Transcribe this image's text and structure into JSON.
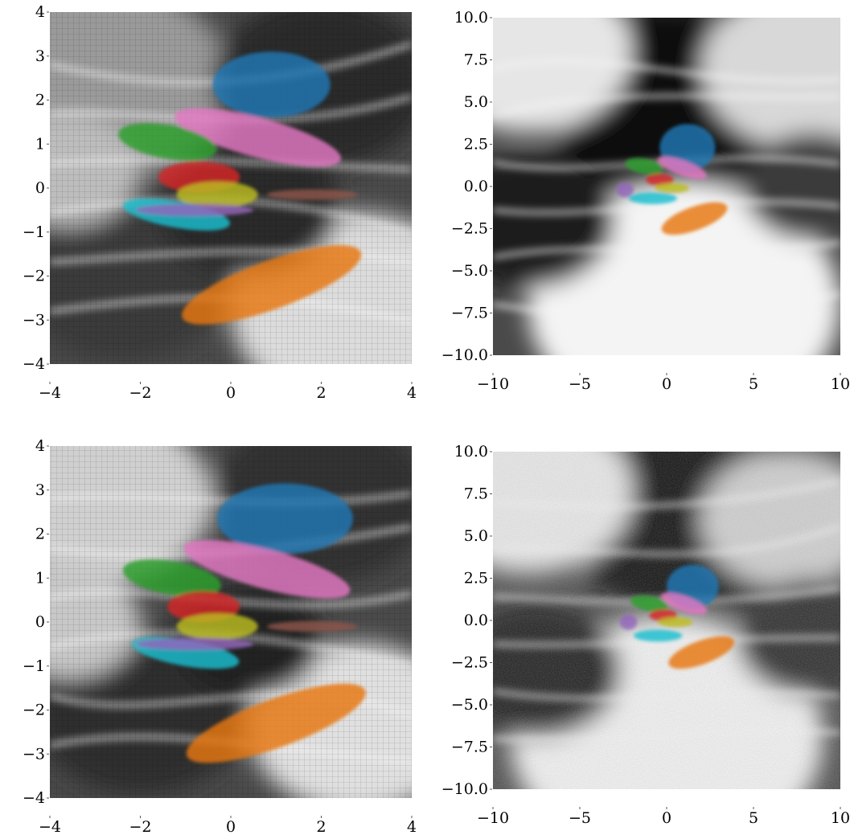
{
  "figure": {
    "layout": "2x2 grid of heatmap panels with overlaid colored point clusters"
  },
  "palette": {
    "blue": "#1f77b4",
    "orange": "#e8760f",
    "green": "#2ca02c",
    "red": "#d62728",
    "purple": "#9467bd",
    "pink": "#e377c2",
    "olive": "#bcbd22",
    "cyan": "#17becf",
    "brown": "#8c564b",
    "background_dark": "#1a1a1a",
    "background_light": "#f2f2f2"
  },
  "chart_data": [
    {
      "type": "heatmap",
      "panel": "top-left",
      "background": "grayscale density map, coarse grid",
      "grid": true,
      "xlim": [
        -4,
        4
      ],
      "ylim": [
        -4,
        4
      ],
      "xticks": [
        "−4",
        "−2",
        "0",
        "2",
        "4"
      ],
      "yticks": [
        "−4",
        "−3",
        "−2",
        "−1",
        "0",
        "1",
        "2",
        "3",
        "4"
      ],
      "xtick_values": [
        -4,
        -2,
        0,
        2,
        4
      ],
      "ytick_values": [
        -4,
        -3,
        -2,
        -1,
        0,
        1,
        2,
        3,
        4
      ],
      "clusters": [
        {
          "color": "blue",
          "cx": 0.9,
          "cy": 2.35,
          "rx": 1.3,
          "ry": 0.75,
          "angle": 0
        },
        {
          "color": "pink",
          "cx": 0.6,
          "cy": 1.15,
          "rx": 1.9,
          "ry": 0.45,
          "angle": -15
        },
        {
          "color": "green",
          "cx": -1.4,
          "cy": 1.05,
          "rx": 1.1,
          "ry": 0.38,
          "angle": -10
        },
        {
          "color": "red",
          "cx": -0.7,
          "cy": 0.25,
          "rx": 0.9,
          "ry": 0.35,
          "angle": 0
        },
        {
          "color": "olive",
          "cx": -0.3,
          "cy": -0.15,
          "rx": 0.9,
          "ry": 0.3,
          "angle": 0
        },
        {
          "color": "cyan",
          "cx": -1.2,
          "cy": -0.6,
          "rx": 1.2,
          "ry": 0.3,
          "angle": -10
        },
        {
          "color": "purple",
          "cx": -0.8,
          "cy": -0.5,
          "rx": 1.3,
          "ry": 0.14,
          "angle": 0
        },
        {
          "color": "brown",
          "cx": 1.8,
          "cy": -0.15,
          "rx": 1.0,
          "ry": 0.12,
          "angle": 0
        },
        {
          "color": "orange",
          "cx": 0.9,
          "cy": -2.2,
          "rx": 2.1,
          "ry": 0.55,
          "angle": 20
        }
      ]
    },
    {
      "type": "heatmap",
      "panel": "top-right",
      "background": "grayscale density map, smooth",
      "grid": false,
      "xlim": [
        -10,
        10
      ],
      "ylim": [
        -10,
        10
      ],
      "xticks": [
        "−10",
        "−5",
        "0",
        "5",
        "10"
      ],
      "yticks": [
        "−10.0",
        "−7.5",
        "−5.0",
        "−2.5",
        "0.0",
        "2.5",
        "5.0",
        "7.5",
        "10.0"
      ],
      "xtick_values": [
        -10,
        -5,
        0,
        5,
        10
      ],
      "ytick_values": [
        -10,
        -7.5,
        -5,
        -2.5,
        0,
        2.5,
        5,
        7.5,
        10
      ],
      "clusters": [
        {
          "color": "blue",
          "cx": 1.2,
          "cy": 2.3,
          "rx": 1.6,
          "ry": 1.4,
          "angle": 0
        },
        {
          "color": "pink",
          "cx": 0.9,
          "cy": 1.1,
          "rx": 1.5,
          "ry": 0.45,
          "angle": -20
        },
        {
          "color": "green",
          "cx": -1.3,
          "cy": 1.2,
          "rx": 1.1,
          "ry": 0.45,
          "angle": -10
        },
        {
          "color": "red",
          "cx": -0.4,
          "cy": 0.4,
          "rx": 0.8,
          "ry": 0.35,
          "angle": 0
        },
        {
          "color": "olive",
          "cx": 0.3,
          "cy": -0.1,
          "rx": 1.0,
          "ry": 0.3,
          "angle": 0
        },
        {
          "color": "cyan",
          "cx": -0.8,
          "cy": -0.7,
          "rx": 1.4,
          "ry": 0.35,
          "angle": 0
        },
        {
          "color": "purple",
          "cx": -2.4,
          "cy": -0.2,
          "rx": 0.5,
          "ry": 0.45,
          "angle": 0
        },
        {
          "color": "orange",
          "cx": 1.6,
          "cy": -1.9,
          "rx": 2.0,
          "ry": 0.7,
          "angle": 20
        }
      ]
    },
    {
      "type": "heatmap",
      "panel": "bottom-left",
      "background": "grayscale density map, coarse grid, noisy",
      "grid": true,
      "xlim": [
        -4,
        4
      ],
      "ylim": [
        -4,
        4
      ],
      "xticks": [
        "−4",
        "−2",
        "0",
        "2",
        "4"
      ],
      "yticks": [
        "−4",
        "−3",
        "−2",
        "−1",
        "0",
        "1",
        "2",
        "3",
        "4"
      ],
      "xtick_values": [
        -4,
        -2,
        0,
        2,
        4
      ],
      "ytick_values": [
        -4,
        -3,
        -2,
        -1,
        0,
        1,
        2,
        3,
        4
      ],
      "clusters": [
        {
          "color": "blue",
          "cx": 1.2,
          "cy": 2.35,
          "rx": 1.5,
          "ry": 0.8,
          "angle": 0
        },
        {
          "color": "pink",
          "cx": 0.8,
          "cy": 1.2,
          "rx": 1.9,
          "ry": 0.45,
          "angle": -15
        },
        {
          "color": "green",
          "cx": -1.3,
          "cy": 1.0,
          "rx": 1.1,
          "ry": 0.38,
          "angle": -10
        },
        {
          "color": "red",
          "cx": -0.6,
          "cy": 0.35,
          "rx": 0.8,
          "ry": 0.35,
          "angle": 0
        },
        {
          "color": "olive",
          "cx": -0.3,
          "cy": -0.1,
          "rx": 0.9,
          "ry": 0.3,
          "angle": 0
        },
        {
          "color": "cyan",
          "cx": -1.0,
          "cy": -0.7,
          "rx": 1.2,
          "ry": 0.3,
          "angle": -10
        },
        {
          "color": "purple",
          "cx": -0.8,
          "cy": -0.5,
          "rx": 1.3,
          "ry": 0.14,
          "angle": 0
        },
        {
          "color": "brown",
          "cx": 1.8,
          "cy": -0.1,
          "rx": 1.0,
          "ry": 0.12,
          "angle": 0
        },
        {
          "color": "orange",
          "cx": 1.0,
          "cy": -2.3,
          "rx": 2.1,
          "ry": 0.55,
          "angle": 20
        }
      ]
    },
    {
      "type": "heatmap",
      "panel": "bottom-right",
      "background": "grayscale density map, grainy",
      "grid": false,
      "xlim": [
        -10,
        10
      ],
      "ylim": [
        -10,
        10
      ],
      "xticks": [
        "−10",
        "−5",
        "0",
        "5",
        "10"
      ],
      "yticks": [
        "−10.0",
        "−7.5",
        "−5.0",
        "−2.5",
        "0.0",
        "2.5",
        "5.0",
        "7.5",
        "10.0"
      ],
      "xtick_values": [
        -10,
        -5,
        0,
        5,
        10
      ],
      "ytick_values": [
        -10,
        -7.5,
        -5,
        -2.5,
        0,
        2.5,
        5,
        7.5,
        10
      ],
      "clusters": [
        {
          "color": "blue",
          "cx": 1.5,
          "cy": 2.0,
          "rx": 1.5,
          "ry": 1.3,
          "angle": 0
        },
        {
          "color": "pink",
          "cx": 1.0,
          "cy": 1.0,
          "rx": 1.4,
          "ry": 0.45,
          "angle": -20
        },
        {
          "color": "green",
          "cx": -1.0,
          "cy": 1.0,
          "rx": 1.1,
          "ry": 0.45,
          "angle": -10
        },
        {
          "color": "red",
          "cx": -0.2,
          "cy": 0.3,
          "rx": 0.8,
          "ry": 0.35,
          "angle": 0
        },
        {
          "color": "olive",
          "cx": 0.5,
          "cy": -0.1,
          "rx": 1.0,
          "ry": 0.3,
          "angle": 0
        },
        {
          "color": "cyan",
          "cx": -0.5,
          "cy": -0.9,
          "rx": 1.4,
          "ry": 0.35,
          "angle": 0
        },
        {
          "color": "purple",
          "cx": -2.2,
          "cy": -0.1,
          "rx": 0.5,
          "ry": 0.45,
          "angle": 0
        },
        {
          "color": "orange",
          "cx": 2.0,
          "cy": -1.9,
          "rx": 2.0,
          "ry": 0.7,
          "angle": 20
        }
      ]
    }
  ]
}
